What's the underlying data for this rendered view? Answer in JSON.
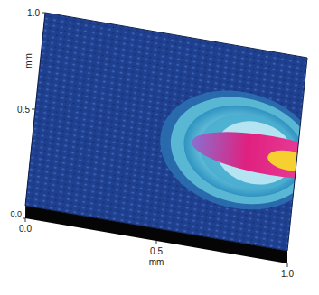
{
  "chart_data": {
    "type": "surface",
    "xlabel": "mm",
    "ylabel": "mm",
    "xlim": [
      0,
      1
    ],
    "ylim": [
      0,
      1
    ],
    "xticks": [
      {
        "value": 0,
        "label": "0.0"
      },
      {
        "value": 0.5,
        "label": "0.5"
      },
      {
        "value": 1,
        "label": "1.0"
      }
    ],
    "yticks": [
      {
        "value": 0.5,
        "label": "0.5"
      },
      {
        "value": 1,
        "label": "1.0"
      }
    ],
    "zticks": [
      {
        "value": 0,
        "label": "0,0"
      }
    ],
    "color": "#1f3f8f"
  }
}
